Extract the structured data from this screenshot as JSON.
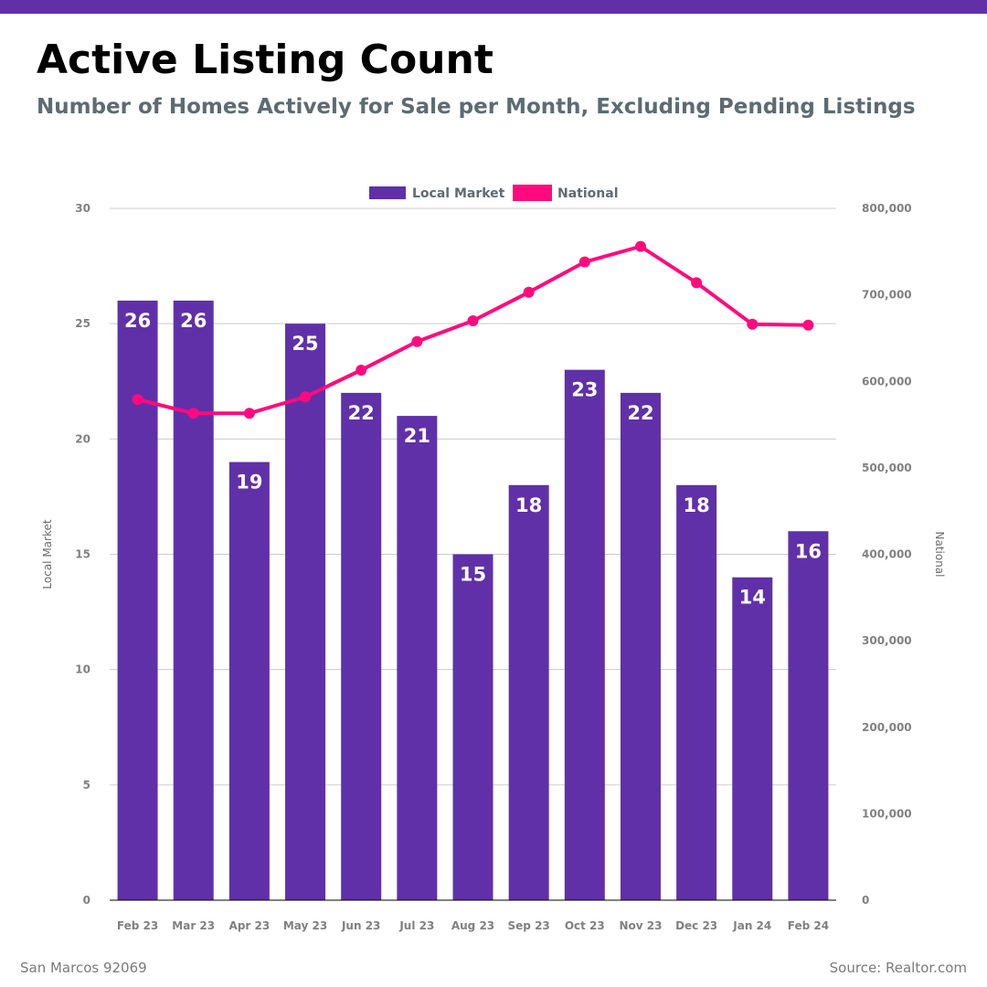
{
  "title": "Active Listing Count",
  "subtitle": "Number of Homes Actively for Sale per Month, Excluding Pending Listings",
  "footer": {
    "location": "San Marcos 92069",
    "source": "Source: Realtor.com"
  },
  "colors": {
    "topbar": "#6030a8",
    "bar": "#6030a8",
    "line": "#ff0a7e",
    "grid": "#cccccc"
  },
  "chart_data": {
    "type": "bar+line",
    "categories": [
      "Feb 23",
      "Mar 23",
      "Apr 23",
      "May 23",
      "Jun 23",
      "Jul 23",
      "Aug 23",
      "Sep 23",
      "Oct 23",
      "Nov 23",
      "Dec 23",
      "Jan 24",
      "Feb 24"
    ],
    "series": [
      {
        "name": "Local Market",
        "type": "bar",
        "axis": "left",
        "values": [
          26,
          26,
          19,
          25,
          22,
          21,
          15,
          18,
          23,
          22,
          18,
          14,
          16
        ]
      },
      {
        "name": "National",
        "type": "line",
        "axis": "right",
        "values": [
          579000,
          563000,
          563000,
          582000,
          613000,
          646000,
          670000,
          703000,
          738000,
          756000,
          714000,
          666000,
          665000
        ]
      }
    ],
    "y_left": {
      "label": "Local Market",
      "min": 0,
      "max": 30,
      "ticks": [
        "0",
        "5",
        "10",
        "15",
        "20",
        "25",
        "30"
      ]
    },
    "y_right": {
      "label": "National",
      "min": 0,
      "max": 800000,
      "ticks": [
        "0",
        "100,000",
        "200,000",
        "300,000",
        "400,000",
        "500,000",
        "600,000",
        "700,000",
        "800,000"
      ]
    },
    "legend": [
      "Local Market",
      "National"
    ],
    "legend_position": "top-center",
    "grid": true
  }
}
